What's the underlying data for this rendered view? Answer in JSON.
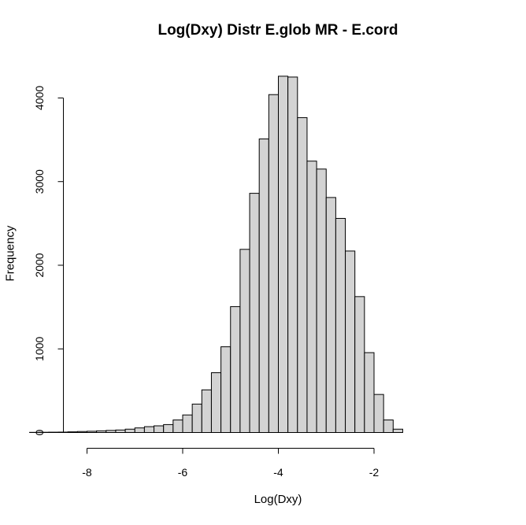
{
  "chart_data": {
    "type": "bar",
    "title": "Log(Dxy) Distr E.glob MR - E.cord",
    "xlabel": "Log(Dxy)",
    "ylabel": "Frequency",
    "bin_width": 0.2,
    "first_bin_start": -9.2,
    "values": [
      2,
      3,
      4,
      5,
      8,
      12,
      15,
      20,
      25,
      30,
      40,
      55,
      70,
      80,
      95,
      150,
      210,
      340,
      510,
      715,
      1025,
      1505,
      2190,
      2860,
      3510,
      4040,
      4260,
      4250,
      3765,
      3245,
      3150,
      2810,
      2560,
      2170,
      1625,
      955,
      455,
      150,
      40
    ],
    "xlim": [
      -9.2,
      -0.8
    ],
    "ylim": [
      0,
      4400
    ],
    "x_ticks": [
      -8,
      -6,
      -4,
      -2
    ],
    "y_ticks": [
      0,
      1000,
      2000,
      3000,
      4000
    ],
    "bar_fill": "#d3d3d3",
    "bar_stroke": "#000000"
  }
}
